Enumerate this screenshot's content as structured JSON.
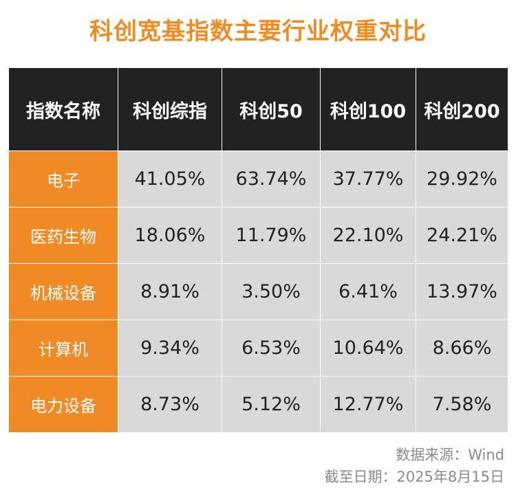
{
  "title": "科创宽基指数主要行业权重对比",
  "table": {
    "headers": [
      "指数名称",
      "科创综指",
      "科创50",
      "科创100",
      "科创200"
    ],
    "rows": [
      {
        "industry": "电子",
        "values": [
          "41.05%",
          "63.74%",
          "37.77%",
          "29.92%"
        ]
      },
      {
        "industry": "医药生物",
        "values": [
          "18.06%",
          "11.79%",
          "22.10%",
          "24.21%"
        ]
      },
      {
        "industry": "机械设备",
        "values": [
          "8.91%",
          "3.50%",
          "6.41%",
          "13.97%"
        ]
      },
      {
        "industry": "计算机",
        "values": [
          "9.34%",
          "6.53%",
          "10.64%",
          "8.66%"
        ]
      },
      {
        "industry": "电力设备",
        "values": [
          "8.73%",
          "5.12%",
          "12.77%",
          "7.58%"
        ]
      }
    ]
  },
  "footer": {
    "source": "数据来源：Wind",
    "date": "截至日期：2025年8月15日"
  },
  "colors": {
    "title": "#f28a1f",
    "header_bg": "#222222",
    "row_label_bg": "#f08a24",
    "cell_bg": "#d9d9d9"
  }
}
